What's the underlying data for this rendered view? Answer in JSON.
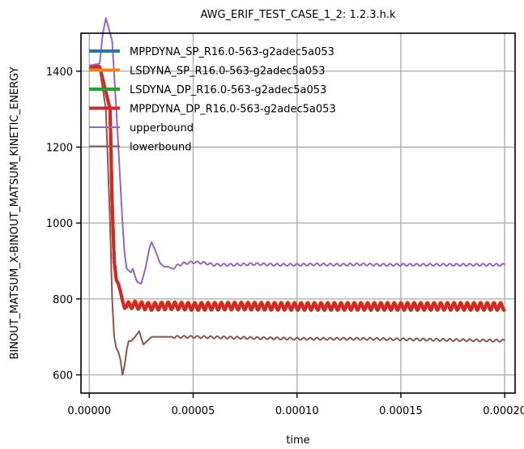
{
  "chart_data": {
    "type": "line",
    "title": "AWG_ERIF_TEST_CASE_1_2: 1.2.3.h.k",
    "xlabel": "time",
    "ylabel": "BINOUT_MATSUM_X-BINOUT_MATSUM_KINETIC_ENERGY",
    "xlim": [
      -4e-06,
      0.000205
    ],
    "ylim": [
      552,
      1500
    ],
    "xticks": [
      0,
      5e-05,
      0.0001,
      0.00015,
      0.0002
    ],
    "xtick_labels": [
      "0.00000",
      "0.00005",
      "0.00010",
      "0.00015",
      "0.00020"
    ],
    "yticks": [
      600,
      800,
      1000,
      1200,
      1400
    ],
    "ytick_labels": [
      "600",
      "800",
      "1000",
      "1200",
      "1400"
    ],
    "grid": true,
    "legend_position": "top-left",
    "series": [
      {
        "name": "MPPDYNA_SP_R16.0-563-g2adec5a053",
        "color": "#1f77b4",
        "kind": "sim",
        "offset": 0,
        "x": [
          0,
          5e-06,
          1e-05,
          1.1e-05,
          1.2e-05,
          1.3e-05,
          1.4e-05,
          1.5e-05,
          1.6e-05,
          1.7e-05,
          1.8e-05,
          2e-05,
          2.5e-05,
          3e-05,
          4e-05,
          5e-05,
          7e-05,
          0.0001,
          0.00013,
          0.00016,
          0.0002
        ],
        "y": [
          1412,
          1412,
          1300,
          1050,
          900,
          850,
          840,
          820,
          795,
          775,
          780,
          785,
          782,
          780,
          782,
          780,
          781,
          780,
          780,
          780,
          780
        ]
      },
      {
        "name": "LSDYNA_SP_R16.0-563-g2adec5a053",
        "color": "#ff7f0e",
        "kind": "sim",
        "offset": 2,
        "x": [
          0,
          5e-06,
          1e-05,
          1.1e-05,
          1.2e-05,
          1.3e-05,
          1.4e-05,
          1.5e-05,
          1.6e-05,
          1.7e-05,
          1.8e-05,
          2e-05,
          2.5e-05,
          3e-05,
          4e-05,
          5e-05,
          7e-05,
          0.0001,
          0.00013,
          0.00016,
          0.0002
        ],
        "y": [
          1412,
          1412,
          1300,
          1050,
          900,
          850,
          840,
          820,
          795,
          775,
          780,
          785,
          782,
          780,
          782,
          780,
          781,
          780,
          780,
          780,
          780
        ]
      },
      {
        "name": "LSDYNA_DP_R16.0-563-g2adec5a053",
        "color": "#2ca02c",
        "kind": "sim",
        "offset": -1,
        "x": [
          0,
          5e-06,
          1e-05,
          1.1e-05,
          1.2e-05,
          1.3e-05,
          1.4e-05,
          1.5e-05,
          1.6e-05,
          1.7e-05,
          1.8e-05,
          2e-05,
          2.5e-05,
          3e-05,
          4e-05,
          5e-05,
          7e-05,
          0.0001,
          0.00013,
          0.00016,
          0.0002
        ],
        "y": [
          1412,
          1412,
          1300,
          1050,
          900,
          850,
          840,
          820,
          795,
          775,
          780,
          785,
          782,
          780,
          782,
          780,
          781,
          780,
          780,
          780,
          780
        ]
      },
      {
        "name": "MPPDYNA_DP_R16.0-563-g2adec5a053",
        "color": "#d62728",
        "kind": "sim",
        "offset": 0,
        "x": [
          0,
          5e-06,
          1e-05,
          1.1e-05,
          1.2e-05,
          1.3e-05,
          1.4e-05,
          1.5e-05,
          1.6e-05,
          1.7e-05,
          1.8e-05,
          2e-05,
          2.5e-05,
          3e-05,
          4e-05,
          5e-05,
          7e-05,
          0.0001,
          0.00013,
          0.00016,
          0.0002
        ],
        "y": [
          1412,
          1412,
          1300,
          1050,
          900,
          850,
          840,
          820,
          795,
          775,
          780,
          785,
          782,
          780,
          782,
          780,
          781,
          780,
          780,
          780,
          780
        ]
      },
      {
        "name": "upperbound",
        "color": "#9467bd",
        "kind": "bound",
        "x": [
          0,
          5e-06,
          6.5e-06,
          8e-06,
          9.5e-06,
          1.1e-05,
          1.2e-05,
          1.3e-05,
          1.4e-05,
          1.5e-05,
          1.6e-05,
          1.7e-05,
          1.8e-05,
          1.9e-05,
          2e-05,
          2.1e-05,
          2.2e-05,
          2.3e-05,
          2.5e-05,
          2.7e-05,
          2.9e-05,
          3e-05,
          3.2e-05,
          3.4e-05,
          3.6e-05,
          3.8e-05,
          4e-05,
          4.2e-05,
          4.5e-05,
          5e-05,
          5.5e-05,
          6e-05,
          7e-05,
          8e-05,
          9e-05,
          0.0001,
          0.00011,
          0.00012,
          0.00013,
          0.00014,
          0.00015,
          0.00016,
          0.00017,
          0.00018,
          0.00019,
          0.0002
        ],
        "y": [
          1415,
          1420,
          1500,
          1540,
          1510,
          1480,
          1390,
          1300,
          1200,
          1100,
          1000,
          920,
          880,
          875,
          870,
          880,
          860,
          845,
          840,
          880,
          935,
          950,
          925,
          895,
          885,
          885,
          880,
          887,
          893,
          897,
          895,
          890,
          890,
          892,
          890,
          890,
          891,
          890,
          891,
          890,
          890,
          890,
          890,
          890,
          890,
          890
        ]
      },
      {
        "name": "lowerbound",
        "color": "#8c564b",
        "kind": "bound",
        "x": [
          0,
          5e-06,
          8e-06,
          1e-05,
          1.1e-05,
          1.2e-05,
          1.3e-05,
          1.4e-05,
          1.5e-05,
          1.6e-05,
          1.7e-05,
          1.8e-05,
          1.9e-05,
          2e-05,
          2.2e-05,
          2.4e-05,
          2.6e-05,
          2.8e-05,
          3e-05,
          3.5e-05,
          4e-05,
          5e-05,
          7e-05,
          0.0001,
          0.00013,
          0.00016,
          0.0002
        ],
        "y": [
          1408,
          1405,
          1300,
          1000,
          800,
          700,
          670,
          660,
          640,
          600,
          625,
          665,
          690,
          688,
          700,
          715,
          680,
          690,
          700,
          700,
          700,
          700,
          698,
          695,
          695,
          693,
          690
        ]
      }
    ]
  }
}
